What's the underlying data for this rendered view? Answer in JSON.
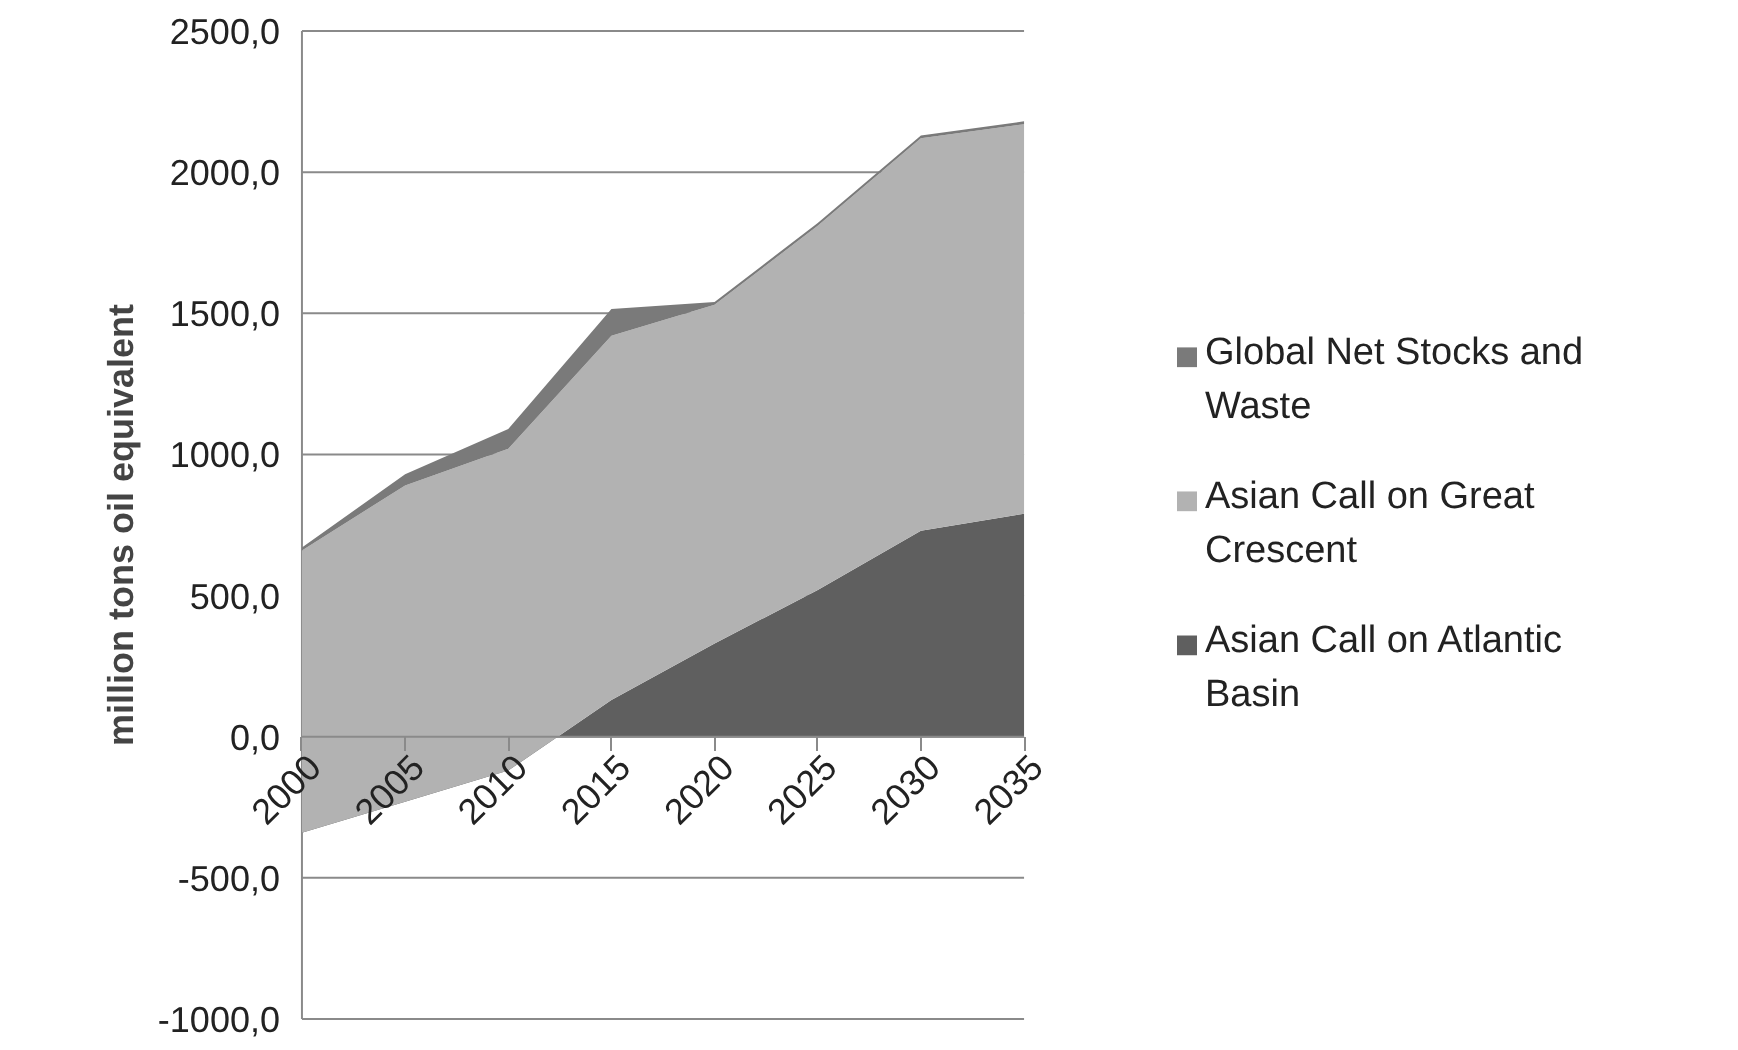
{
  "chart_data": {
    "type": "area",
    "stacked": true,
    "ylabel": "million tons oil equivalent",
    "categories": [
      "2000",
      "2005",
      "2010",
      "2015",
      "2020",
      "2025",
      "2030",
      "2035"
    ],
    "series": [
      {
        "name": "Asian Call on Atlantic Basin",
        "color": "#5f5f5f",
        "values": [
          -340,
          -230,
          -120,
          130,
          330,
          520,
          730,
          790
        ]
      },
      {
        "name": "Asian Call on Great Crescent",
        "color": "#b2b2b2",
        "values": [
          1000,
          1120,
          1140,
          1290,
          1200,
          1290,
          1390,
          1380
        ]
      },
      {
        "name": "Global Net Stocks and Waste",
        "color": "#7a7a7a",
        "values": [
          10,
          40,
          70,
          95,
          10,
          10,
          10,
          10
        ]
      }
    ],
    "ylim": [
      -1000,
      2500
    ],
    "yticks": [
      {
        "value": -1000,
        "label": "-1000,0"
      },
      {
        "value": -500,
        "label": "-500,0"
      },
      {
        "value": 0,
        "label": "0,0"
      },
      {
        "value": 500,
        "label": "500,0"
      },
      {
        "value": 1000,
        "label": "1000,0"
      },
      {
        "value": 1500,
        "label": "1500,0"
      },
      {
        "value": 2000,
        "label": "2000,0"
      },
      {
        "value": 2500,
        "label": "2500,0"
      }
    ],
    "grid": "y",
    "legend": "right"
  }
}
